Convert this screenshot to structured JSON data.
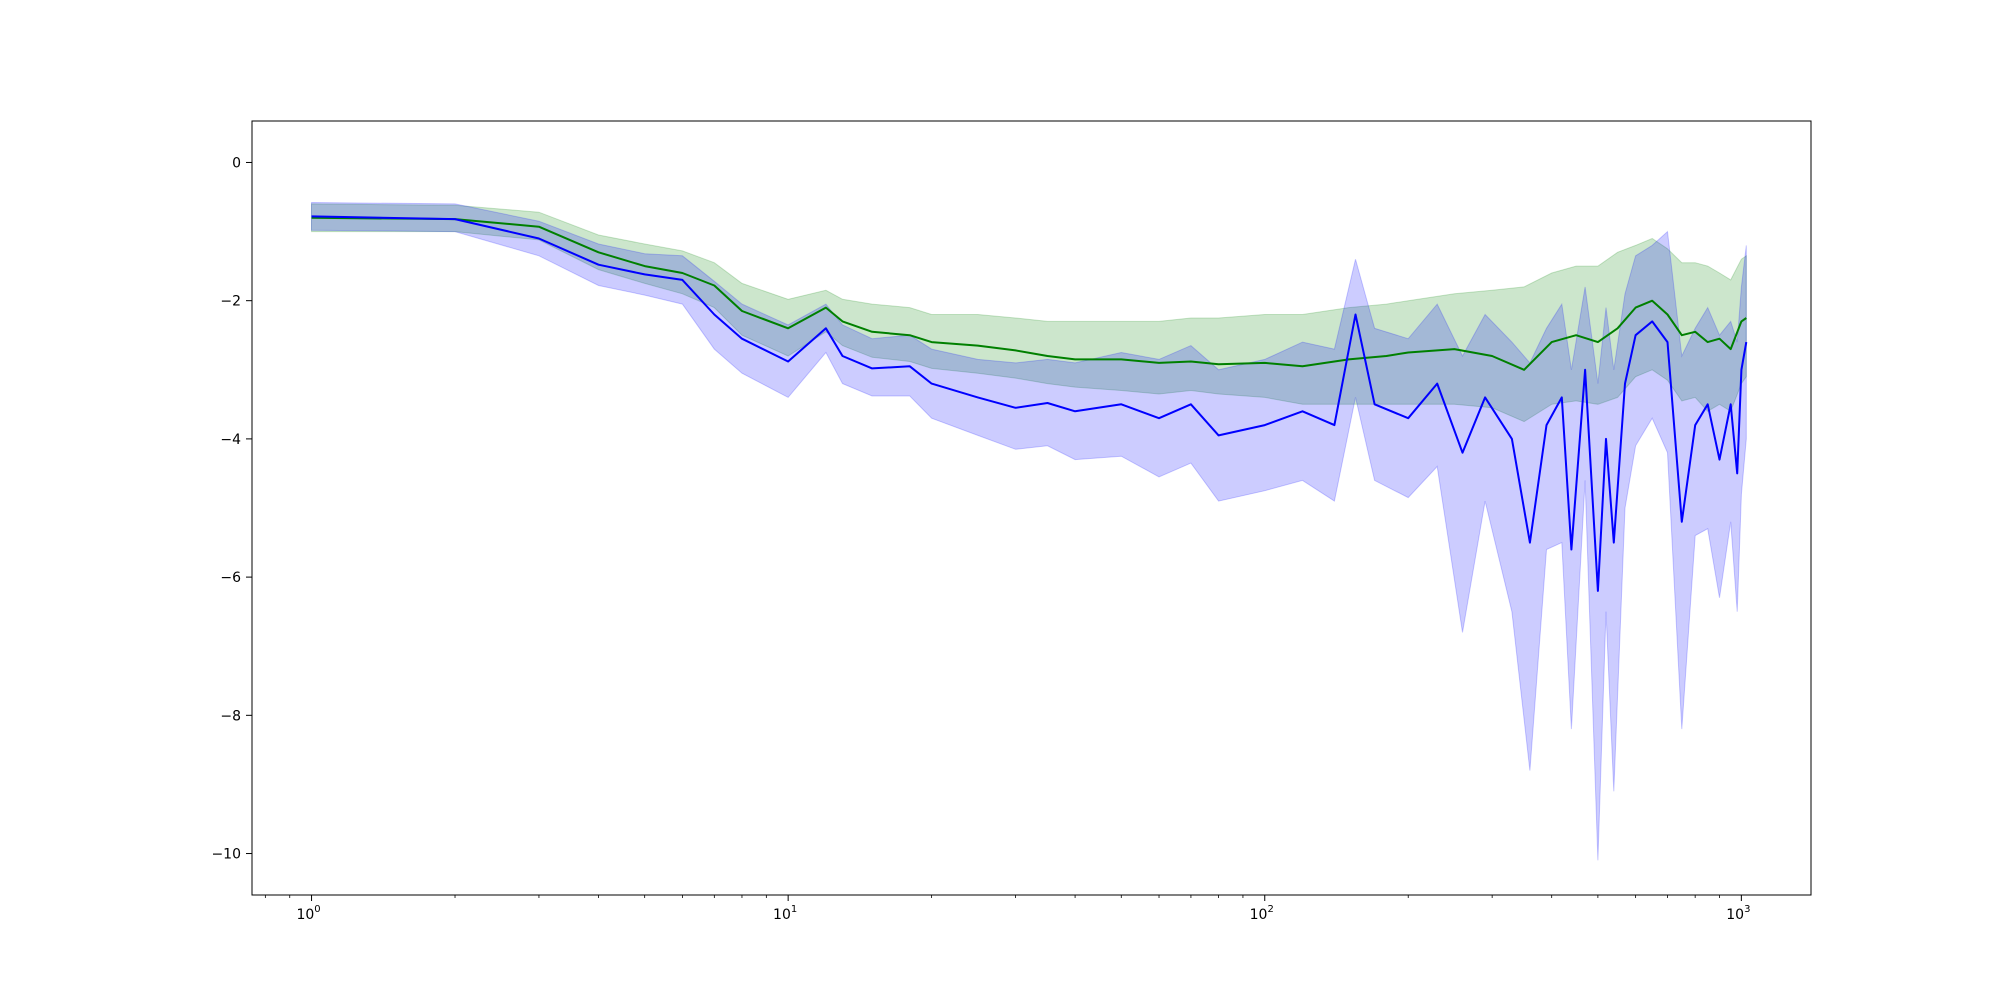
{
  "chart_data": {
    "type": "line",
    "title": "",
    "xlabel": "",
    "ylabel": "",
    "xscale": "log",
    "xlim": [
      0.75,
      1400
    ],
    "ylim": [
      -10.6,
      0.6
    ],
    "grid": false,
    "x_ticks": [
      {
        "value": 1,
        "label": "10",
        "exp": "0"
      },
      {
        "value": 10,
        "label": "10",
        "exp": "1"
      },
      {
        "value": 100,
        "label": "10",
        "exp": "2"
      },
      {
        "value": 1000,
        "label": "10",
        "exp": "3"
      }
    ],
    "y_ticks": [
      {
        "value": 0,
        "label": "0"
      },
      {
        "value": -2,
        "label": "−2"
      },
      {
        "value": -4,
        "label": "−4"
      },
      {
        "value": -6,
        "label": "−6"
      },
      {
        "value": -8,
        "label": "−8"
      },
      {
        "value": -10,
        "label": "−10"
      }
    ],
    "series": [
      {
        "color": "#008000",
        "band_color": "#008000",
        "band_opacity": 0.2,
        "line_width": 2,
        "points": [
          [
            1,
            -0.8,
            -0.6,
            -1.0
          ],
          [
            2,
            -0.82,
            -0.62,
            -1.0
          ],
          [
            3,
            -0.93,
            -0.72,
            -1.12
          ],
          [
            4,
            -1.3,
            -1.05,
            -1.55
          ],
          [
            5,
            -1.5,
            -1.18,
            -1.75
          ],
          [
            6,
            -1.6,
            -1.28,
            -1.9
          ],
          [
            7,
            -1.78,
            -1.45,
            -2.1
          ],
          [
            8,
            -2.15,
            -1.75,
            -2.5
          ],
          [
            10,
            -2.4,
            -1.98,
            -2.8
          ],
          [
            12,
            -2.1,
            -1.85,
            -2.45
          ],
          [
            13,
            -2.3,
            -1.98,
            -2.65
          ],
          [
            15,
            -2.45,
            -2.05,
            -2.82
          ],
          [
            18,
            -2.5,
            -2.1,
            -2.88
          ],
          [
            20,
            -2.6,
            -2.2,
            -2.98
          ],
          [
            25,
            -2.65,
            -2.2,
            -3.05
          ],
          [
            30,
            -2.72,
            -2.25,
            -3.12
          ],
          [
            35,
            -2.8,
            -2.3,
            -3.2
          ],
          [
            40,
            -2.85,
            -2.3,
            -3.25
          ],
          [
            50,
            -2.85,
            -2.3,
            -3.3
          ],
          [
            60,
            -2.9,
            -2.3,
            -3.35
          ],
          [
            70,
            -2.88,
            -2.25,
            -3.3
          ],
          [
            80,
            -2.92,
            -2.25,
            -3.35
          ],
          [
            100,
            -2.9,
            -2.2,
            -3.4
          ],
          [
            120,
            -2.95,
            -2.2,
            -3.5
          ],
          [
            150,
            -2.85,
            -2.1,
            -3.5
          ],
          [
            180,
            -2.8,
            -2.05,
            -3.5
          ],
          [
            200,
            -2.75,
            -2.0,
            -3.5
          ],
          [
            250,
            -2.7,
            -1.9,
            -3.5
          ],
          [
            300,
            -2.8,
            -1.85,
            -3.55
          ],
          [
            350,
            -3.0,
            -1.8,
            -3.75
          ],
          [
            400,
            -2.6,
            -1.6,
            -3.5
          ],
          [
            450,
            -2.5,
            -1.5,
            -3.45
          ],
          [
            500,
            -2.6,
            -1.5,
            -3.5
          ],
          [
            550,
            -2.4,
            -1.3,
            -3.4
          ],
          [
            600,
            -2.1,
            -1.2,
            -3.1
          ],
          [
            650,
            -2.0,
            -1.1,
            -3.0
          ],
          [
            700,
            -2.2,
            -1.25,
            -3.15
          ],
          [
            750,
            -2.5,
            -1.45,
            -3.45
          ],
          [
            800,
            -2.45,
            -1.45,
            -3.4
          ],
          [
            850,
            -2.6,
            -1.5,
            -3.6
          ],
          [
            900,
            -2.55,
            -1.6,
            -3.5
          ],
          [
            950,
            -2.7,
            -1.7,
            -3.6
          ],
          [
            1000,
            -2.3,
            -1.4,
            -3.2
          ],
          [
            1024,
            -2.25,
            -1.35,
            -3.1
          ]
        ]
      },
      {
        "color": "#0000ff",
        "band_color": "#0000ff",
        "band_opacity": 0.2,
        "line_width": 2,
        "points": [
          [
            1,
            -0.78,
            -0.58,
            -0.98
          ],
          [
            2,
            -0.82,
            -0.6,
            -1.0
          ],
          [
            3,
            -1.1,
            -0.85,
            -1.35
          ],
          [
            4,
            -1.48,
            -1.18,
            -1.78
          ],
          [
            5,
            -1.62,
            -1.32,
            -1.92
          ],
          [
            6,
            -1.7,
            -1.35,
            -2.05
          ],
          [
            7,
            -2.2,
            -1.72,
            -2.7
          ],
          [
            8,
            -2.55,
            -2.05,
            -3.05
          ],
          [
            10,
            -2.88,
            -2.35,
            -3.4
          ],
          [
            12,
            -2.4,
            -2.05,
            -2.75
          ],
          [
            13,
            -2.8,
            -2.35,
            -3.2
          ],
          [
            15,
            -2.98,
            -2.55,
            -3.38
          ],
          [
            18,
            -2.95,
            -2.5,
            -3.38
          ],
          [
            20,
            -3.2,
            -2.7,
            -3.7
          ],
          [
            25,
            -3.4,
            -2.85,
            -3.95
          ],
          [
            30,
            -3.55,
            -2.9,
            -4.15
          ],
          [
            35,
            -3.48,
            -2.85,
            -4.1
          ],
          [
            40,
            -3.6,
            -2.9,
            -4.3
          ],
          [
            50,
            -3.5,
            -2.75,
            -4.25
          ],
          [
            60,
            -3.7,
            -2.85,
            -4.55
          ],
          [
            70,
            -3.5,
            -2.65,
            -4.35
          ],
          [
            80,
            -3.95,
            -3.0,
            -4.9
          ],
          [
            100,
            -3.8,
            -2.85,
            -4.75
          ],
          [
            120,
            -3.6,
            -2.6,
            -4.6
          ],
          [
            140,
            -3.8,
            -2.7,
            -4.9
          ],
          [
            155,
            -2.2,
            -1.4,
            -3.4
          ],
          [
            170,
            -3.5,
            -2.4,
            -4.6
          ],
          [
            200,
            -3.7,
            -2.55,
            -4.85
          ],
          [
            230,
            -3.2,
            -2.05,
            -4.4
          ],
          [
            260,
            -4.2,
            -2.8,
            -6.8
          ],
          [
            290,
            -3.4,
            -2.2,
            -4.9
          ],
          [
            330,
            -4.0,
            -2.6,
            -6.5
          ],
          [
            360,
            -5.5,
            -2.9,
            -8.8
          ],
          [
            390,
            -3.8,
            -2.4,
            -5.6
          ],
          [
            420,
            -3.4,
            -2.05,
            -5.5
          ],
          [
            440,
            -5.6,
            -3.0,
            -8.2
          ],
          [
            470,
            -3.0,
            -1.8,
            -4.6
          ],
          [
            500,
            -6.2,
            -3.2,
            -10.1
          ],
          [
            520,
            -4.0,
            -2.1,
            -6.5
          ],
          [
            540,
            -5.5,
            -3.0,
            -9.1
          ],
          [
            570,
            -3.2,
            -1.9,
            -5.0
          ],
          [
            600,
            -2.5,
            -1.35,
            -4.1
          ],
          [
            650,
            -2.3,
            -1.2,
            -3.7
          ],
          [
            700,
            -2.6,
            -1.0,
            -4.2
          ],
          [
            750,
            -5.2,
            -2.8,
            -8.2
          ],
          [
            800,
            -3.8,
            -2.4,
            -5.4
          ],
          [
            850,
            -3.5,
            -2.1,
            -5.3
          ],
          [
            900,
            -4.3,
            -2.5,
            -6.3
          ],
          [
            950,
            -3.5,
            -2.3,
            -5.2
          ],
          [
            980,
            -4.5,
            -2.6,
            -6.5
          ],
          [
            1000,
            -3.0,
            -1.8,
            -4.8
          ],
          [
            1024,
            -2.6,
            -1.2,
            -4.0
          ]
        ]
      }
    ]
  }
}
